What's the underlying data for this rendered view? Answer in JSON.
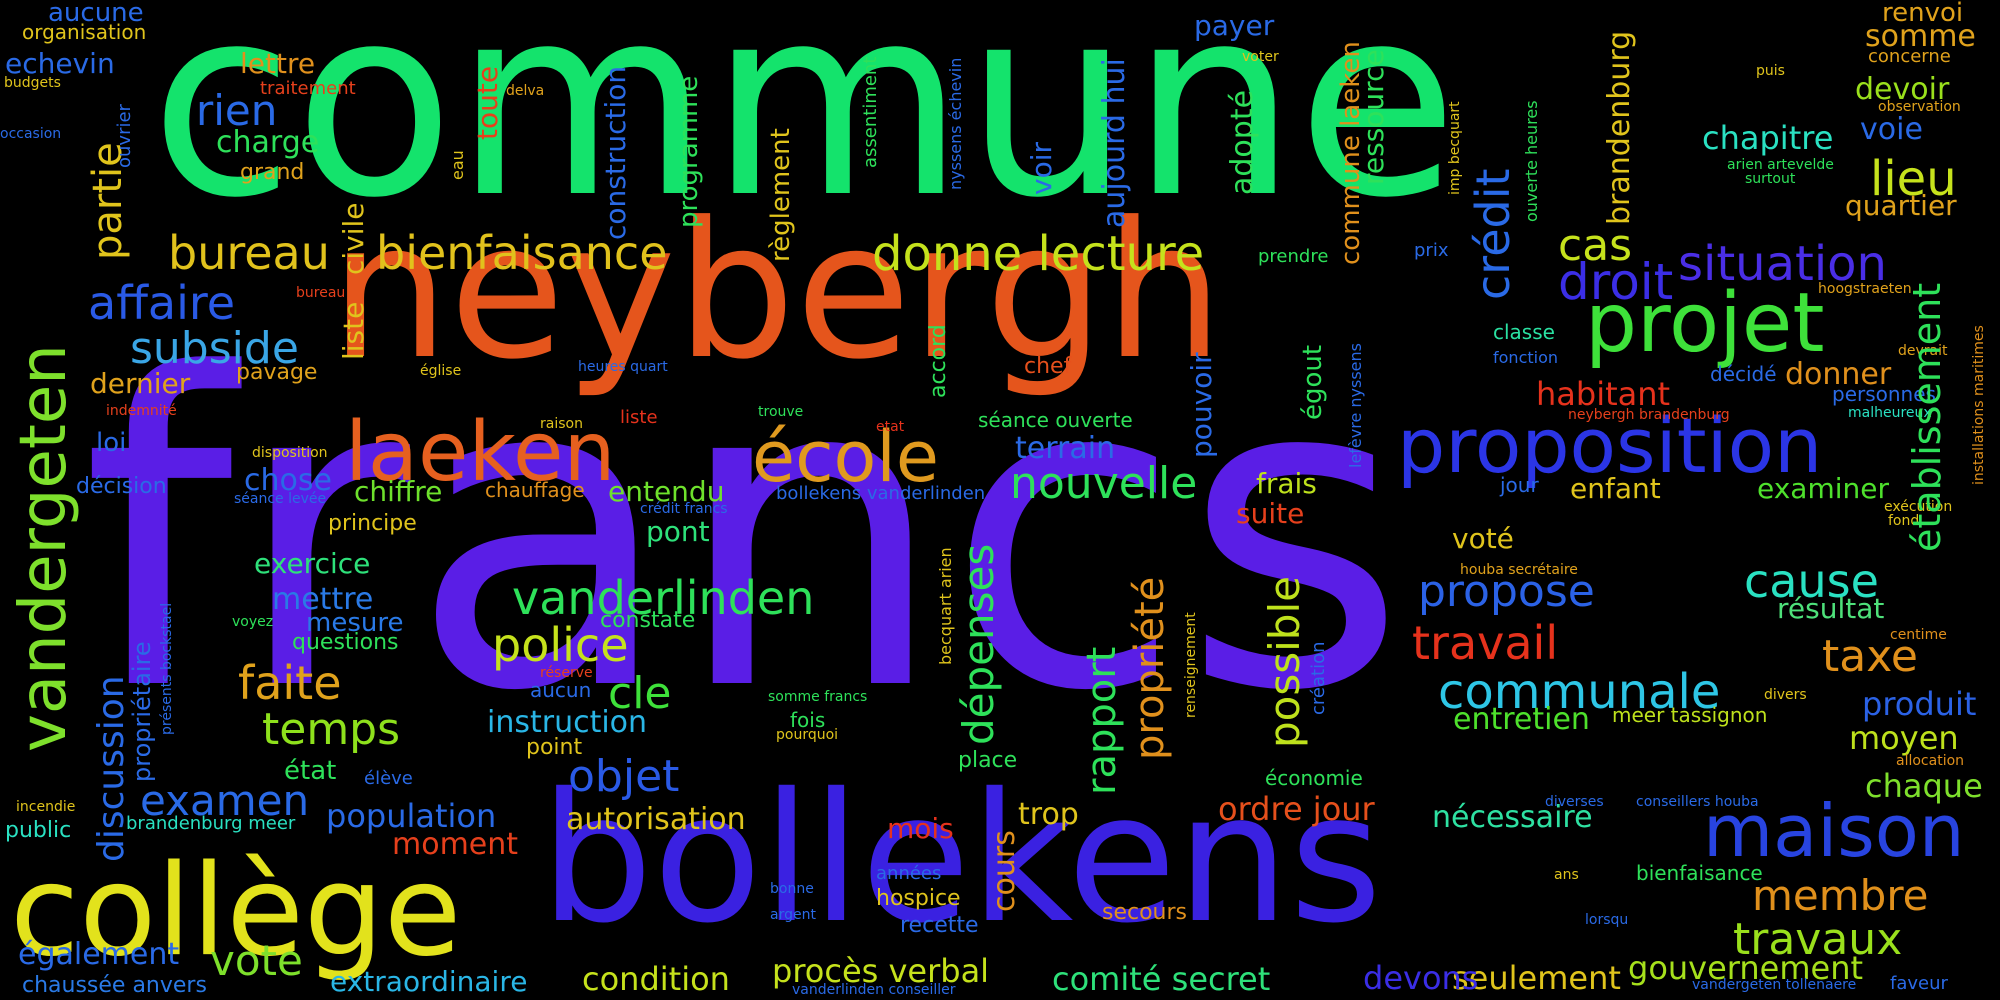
{
  "words": [
    {
      "text": "commune",
      "color": "#14e36c"
    },
    {
      "text": "francs",
      "color": "#5a1ee6"
    },
    {
      "text": "neybergh",
      "color": "#e5551c"
    },
    {
      "text": "bollekens",
      "color": "#3a21e1"
    },
    {
      "text": "collège",
      "color": "#e2e21c"
    },
    {
      "text": "laeken",
      "color": "#e6601f"
    },
    {
      "text": "école",
      "color": "#e09a1f"
    },
    {
      "text": "projet",
      "color": "#3ee13a"
    },
    {
      "text": "proposition",
      "color": "#2b35e6"
    },
    {
      "text": "maison",
      "color": "#2844e0"
    },
    {
      "text": "vandergeten",
      "color": "#7ee02c"
    },
    {
      "text": "bureau",
      "color": "#e1c21c"
    },
    {
      "text": "bienfaisance",
      "color": "#e1c21c"
    },
    {
      "text": "donne lecture",
      "color": "#c5e21c"
    },
    {
      "text": "situation",
      "color": "#4a2ee6"
    },
    {
      "text": "droit",
      "color": "#3b2ee6"
    },
    {
      "text": "cas",
      "color": "#c6e21c"
    },
    {
      "text": "lieu",
      "color": "#c6e21c"
    },
    {
      "text": "affaire",
      "color": "#2a5ae6"
    },
    {
      "text": "subside",
      "color": "#3aa6e6"
    },
    {
      "text": "partie",
      "color": "#e0c41c"
    },
    {
      "text": "nouvelle",
      "color": "#2ee15a"
    },
    {
      "text": "vanderlinden",
      "color": "#2ee15a"
    },
    {
      "text": "police",
      "color": "#c6e21c"
    },
    {
      "text": "propose",
      "color": "#2b62e6"
    },
    {
      "text": "cause",
      "color": "#2ae1c2"
    },
    {
      "text": "travail",
      "color": "#e6321c"
    },
    {
      "text": "communale",
      "color": "#2ec6e6"
    },
    {
      "text": "faite",
      "color": "#e0a21c"
    },
    {
      "text": "temps",
      "color": "#8ee11c"
    },
    {
      "text": "objet",
      "color": "#2a5ae6"
    },
    {
      "text": "cle",
      "color": "#3ee13a"
    },
    {
      "text": "examen",
      "color": "#2a6ae6"
    },
    {
      "text": "vote",
      "color": "#7ee02c"
    },
    {
      "text": "travaux",
      "color": "#9ae01c"
    },
    {
      "text": "membre",
      "color": "#e0901c"
    },
    {
      "text": "taxe",
      "color": "#e0901c"
    },
    {
      "text": "moyen",
      "color": "#bee11c"
    },
    {
      "text": "produit",
      "color": "#2b62e6"
    },
    {
      "text": "chaque",
      "color": "#7ee02c"
    },
    {
      "text": "gouvernement",
      "color": "#a6e01c"
    },
    {
      "text": "seulement",
      "color": "#e0c41c"
    },
    {
      "text": "devons",
      "color": "#3b2ee6"
    },
    {
      "text": "comité secret",
      "color": "#2ee17a"
    },
    {
      "text": "procès verbal",
      "color": "#c6e21c"
    },
    {
      "text": "condition",
      "color": "#c6e21c"
    },
    {
      "text": "extraordinaire",
      "color": "#2ab6e6"
    },
    {
      "text": "chaussée anvers",
      "color": "#2a7ae6"
    },
    {
      "text": "également",
      "color": "#2a6ae6"
    },
    {
      "text": "population",
      "color": "#2a6ae6"
    },
    {
      "text": "autorisation",
      "color": "#e0c41c"
    },
    {
      "text": "moment",
      "color": "#e6401c"
    },
    {
      "text": "ordre jour",
      "color": "#e6501c"
    },
    {
      "text": "nécessaire",
      "color": "#2ee1a2"
    },
    {
      "text": "mois",
      "color": "#e6321c"
    },
    {
      "text": "trop",
      "color": "#e0c41c"
    },
    {
      "text": "instruction",
      "color": "#2ab6e6"
    },
    {
      "text": "entretien",
      "color": "#4ee12c"
    },
    {
      "text": "habitant",
      "color": "#e6321c"
    },
    {
      "text": "chapitre",
      "color": "#2ae1c2"
    },
    {
      "text": "voie",
      "color": "#2a6ae6"
    },
    {
      "text": "devoir",
      "color": "#9ae01c"
    },
    {
      "text": "somme",
      "color": "#e0a21c"
    },
    {
      "text": "renvoi",
      "color": "#e0a21c"
    },
    {
      "text": "quartier",
      "color": "#e0a21c"
    },
    {
      "text": "donner",
      "color": "#e0901c"
    },
    {
      "text": "enfant",
      "color": "#e0c41c"
    },
    {
      "text": "examiner",
      "color": "#4ee12c"
    },
    {
      "text": "résultat",
      "color": "#4ee17a"
    },
    {
      "text": "voté",
      "color": "#e0c41c"
    },
    {
      "text": "frais",
      "color": "#bee11c"
    },
    {
      "text": "suite",
      "color": "#e6401c"
    },
    {
      "text": "terrain",
      "color": "#2a6ae6"
    },
    {
      "text": "entendu",
      "color": "#6ee12c"
    },
    {
      "text": "chiffre",
      "color": "#6ee12c"
    },
    {
      "text": "chose",
      "color": "#2a6ae6"
    },
    {
      "text": "pont",
      "color": "#2ee17a"
    },
    {
      "text": "exercice",
      "color": "#2ee17a"
    },
    {
      "text": "mettre",
      "color": "#2a7ae6"
    },
    {
      "text": "mesure",
      "color": "#2a7ae6"
    },
    {
      "text": "dernier",
      "color": "#e0a21c"
    },
    {
      "text": "rien",
      "color": "#2a6ae6"
    },
    {
      "text": "charge",
      "color": "#2ee15a"
    },
    {
      "text": "lettre",
      "color": "#e0901c"
    },
    {
      "text": "echevin",
      "color": "#2a6ae6"
    },
    {
      "text": "aucune",
      "color": "#2a6ae6"
    },
    {
      "text": "payer",
      "color": "#2a6ae6"
    },
    {
      "text": "loi",
      "color": "#2a6ae6"
    },
    {
      "text": "décision",
      "color": "#2a6ae6"
    },
    {
      "text": "public",
      "color": "#2ae1c2"
    },
    {
      "text": "état",
      "color": "#2ee15a"
    },
    {
      "text": "point",
      "color": "#e0c41c"
    },
    {
      "text": "principe",
      "color": "#e0c41c"
    },
    {
      "text": "pavage",
      "color": "#e0a21c"
    },
    {
      "text": "grand",
      "color": "#e0a21c"
    },
    {
      "text": "questions",
      "color": "#2ee15a"
    },
    {
      "text": "constate",
      "color": "#2ee15a"
    },
    {
      "text": "aucun",
      "color": "#2a6ae6"
    },
    {
      "text": "fois",
      "color": "#2ee15a"
    },
    {
      "text": "place",
      "color": "#2ee15a"
    },
    {
      "text": "hospice",
      "color": "#e0c41c"
    },
    {
      "text": "recette",
      "color": "#2a6ae6"
    },
    {
      "text": "secours",
      "color": "#e0901c"
    },
    {
      "text": "jour",
      "color": "#2a6ae6"
    },
    {
      "text": "classe",
      "color": "#2ae1a2"
    },
    {
      "text": "chef",
      "color": "#e6501c"
    },
    {
      "text": "séance ouverte",
      "color": "#2ee15a"
    },
    {
      "text": "fonction",
      "color": "#2a6ae6"
    },
    {
      "text": "décidé",
      "color": "#2a6ae6"
    },
    {
      "text": "personnes",
      "color": "#2a6ae6"
    },
    {
      "text": "bienfaisance",
      "color": "#2ee15a"
    },
    {
      "text": "prendre",
      "color": "#2ee15a"
    },
    {
      "text": "prix",
      "color": "#2a6ae6"
    },
    {
      "text": "économie",
      "color": "#2ee15a"
    },
    {
      "text": "chauffage",
      "color": "#e0901c"
    },
    {
      "text": "bollekens vanderlinden",
      "color": "#2a6ae6"
    },
    {
      "text": "crédit francs",
      "color": "#2a6ae6"
    },
    {
      "text": "traitement",
      "color": "#e6401c"
    },
    {
      "text": "organisation",
      "color": "#e0c41c"
    },
    {
      "text": "budgets",
      "color": "#e0c41c"
    },
    {
      "text": "occasion",
      "color": "#2a6ae6"
    },
    {
      "text": "eau",
      "color": "#e0c41c"
    },
    {
      "text": "delva",
      "color": "#e0a21c"
    },
    {
      "text": "voter",
      "color": "#e0c41c"
    },
    {
      "text": "puis",
      "color": "#e0c41c"
    },
    {
      "text": "concerne",
      "color": "#e0a21c"
    },
    {
      "text": "observation",
      "color": "#e0a21c"
    },
    {
      "text": "surtout",
      "color": "#2ee15a"
    },
    {
      "text": "arien artevelde",
      "color": "#2ee15a"
    },
    {
      "text": "hoogstraeten",
      "color": "#e0a21c"
    },
    {
      "text": "devrait",
      "color": "#e0a21c"
    },
    {
      "text": "malheureux",
      "color": "#2ae1c2"
    },
    {
      "text": "neybergh brandenburg",
      "color": "#e6401c"
    },
    {
      "text": "exécution",
      "color": "#e0c41c"
    },
    {
      "text": "fond",
      "color": "#e0c41c"
    },
    {
      "text": "centime",
      "color": "#e0901c"
    },
    {
      "text": "allocation",
      "color": "#e0901c"
    },
    {
      "text": "divers",
      "color": "#e0c41c"
    },
    {
      "text": "meer tassignon",
      "color": "#bee11c"
    },
    {
      "text": "houba secrétaire",
      "color": "#e0a21c"
    },
    {
      "text": "conseillers houba",
      "color": "#2a6ae6"
    },
    {
      "text": "diverses",
      "color": "#2a6ae6"
    },
    {
      "text": "ans",
      "color": "#e0c41c"
    },
    {
      "text": "lorsqu",
      "color": "#2a6ae6"
    },
    {
      "text": "vandergeten tollenaere",
      "color": "#2a6ae6"
    },
    {
      "text": "faveur",
      "color": "#2a6ae6"
    },
    {
      "text": "vanderlinden conseiller",
      "color": "#2a6ae6"
    },
    {
      "text": "années",
      "color": "#2a6ae6"
    },
    {
      "text": "accord",
      "color": "#2ee15a"
    },
    {
      "text": "raison",
      "color": "#e0c41c"
    },
    {
      "text": "liste",
      "color": "#e6321c"
    },
    {
      "text": "etat",
      "color": "#e6321c"
    },
    {
      "text": "trouve",
      "color": "#2ee15a"
    },
    {
      "text": "heures quart",
      "color": "#2a6ae6"
    },
    {
      "text": "église",
      "color": "#e0c41c"
    },
    {
      "text": "bureau",
      "color": "#e6401c"
    },
    {
      "text": "indemnité",
      "color": "#e6401c"
    },
    {
      "text": "disposition",
      "color": "#e0c41c"
    },
    {
      "text": "séance levée",
      "color": "#2a6ae6"
    },
    {
      "text": "voyez",
      "color": "#2ee15a"
    },
    {
      "text": "réserve",
      "color": "#e6401c"
    },
    {
      "text": "somme francs",
      "color": "#2ee15a"
    },
    {
      "text": "pourquoi",
      "color": "#e0c41c"
    },
    {
      "text": "élève",
      "color": "#2a6ae6"
    },
    {
      "text": "brandenburg meer",
      "color": "#2ae1c2"
    },
    {
      "text": "incendie",
      "color": "#e0c41c"
    },
    {
      "text": "bonne",
      "color": "#2a6ae6"
    },
    {
      "text": "argent",
      "color": "#2a6ae6"
    },
    {
      "text": "crédit",
      "color": "#2a6ae6"
    },
    {
      "text": "brandenburg",
      "color": "#e0c41c"
    },
    {
      "text": "aujourd hui",
      "color": "#2a6ae6"
    },
    {
      "text": "adopté",
      "color": "#2ee15a"
    },
    {
      "text": "ressource",
      "color": "#2ee15a"
    },
    {
      "text": "commune laeken",
      "color": "#e0901c"
    },
    {
      "text": "voir",
      "color": "#2a6ae6"
    },
    {
      "text": "toute",
      "color": "#e6401c"
    },
    {
      "text": "construction",
      "color": "#2a6ae6"
    },
    {
      "text": "programme",
      "color": "#2ee15a"
    },
    {
      "text": "règlement",
      "color": "#e0c41c"
    },
    {
      "text": "assentiment",
      "color": "#2ee15a"
    },
    {
      "text": "nyssens échevin",
      "color": "#2a6ae6"
    },
    {
      "text": "imp becquart",
      "color": "#e0c41c"
    },
    {
      "text": "ouverte heures",
      "color": "#2ee15a"
    },
    {
      "text": "ouvrier",
      "color": "#2a6ae6"
    },
    {
      "text": "civile",
      "color": "#e0c41c"
    },
    {
      "text": "liste",
      "color": "#e0c41c"
    },
    {
      "text": "discussion",
      "color": "#2a6ae6"
    },
    {
      "text": "propriétaire",
      "color": "#2a6ae6"
    },
    {
      "text": "présents bockstael",
      "color": "#2a6ae6"
    },
    {
      "text": "pouvoir",
      "color": "#2a6ae6"
    },
    {
      "text": "égout",
      "color": "#2ee15a"
    },
    {
      "text": "lefèvre nyssens",
      "color": "#2a6ae6"
    },
    {
      "text": "établissement",
      "color": "#2ee15a"
    },
    {
      "text": "installations maritimes",
      "color": "#e0901c"
    },
    {
      "text": "dépenses",
      "color": "#2ee15a"
    },
    {
      "text": "rapport",
      "color": "#2ee15a"
    },
    {
      "text": "propriété",
      "color": "#e0901c"
    },
    {
      "text": "possible",
      "color": "#bee11c"
    },
    {
      "text": "création",
      "color": "#2a6ae6"
    },
    {
      "text": "becquart arien",
      "color": "#e0c41c"
    },
    {
      "text": "renseignement",
      "color": "#e0c41c"
    },
    {
      "text": "cours",
      "color": "#e0901c"
    }
  ]
}
